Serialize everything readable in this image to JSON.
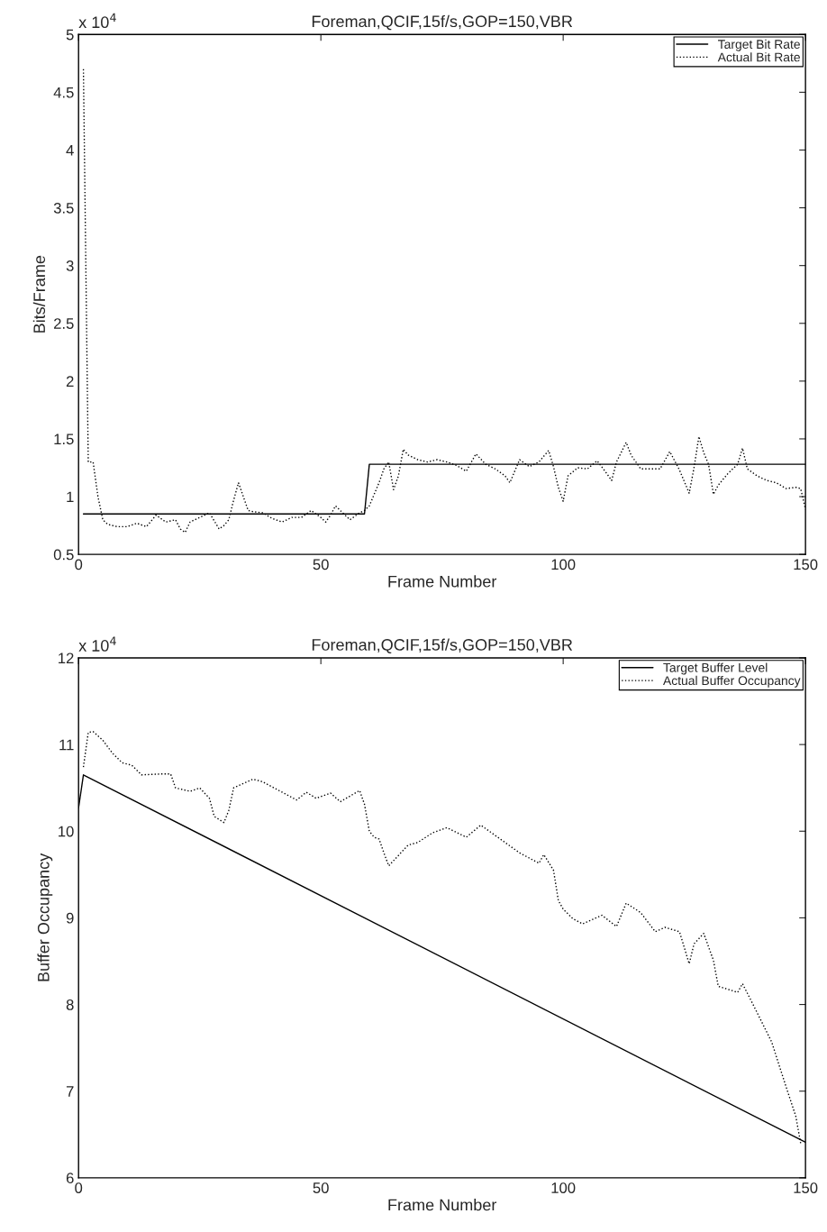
{
  "chart_data": [
    {
      "type": "line",
      "title": "Foreman,QCIF,15f/s,GOP=150,VBR",
      "xlabel": "Frame Number",
      "ylabel": "Bits/Frame",
      "annotations": [
        "x 10$^{4}$"
      ],
      "xlim": [
        0,
        150
      ],
      "xticks": [
        0,
        50,
        100,
        150
      ],
      "ylim": [
        0.5,
        5
      ],
      "yticks": [
        0.5,
        1,
        1.5,
        2,
        2.5,
        3,
        3.5,
        4,
        4.5,
        5
      ],
      "grid": false,
      "legend": "top right",
      "series": [
        {
          "name": "Target Bit Rate",
          "color": "#000000",
          "line_style": "solid",
          "x": [
            1,
            59,
            60,
            150
          ],
          "values": [
            0.85,
            0.85,
            1.28,
            1.28
          ]
        },
        {
          "name": "Actual Bit Rate",
          "color": "#000000",
          "line_style": "dotted",
          "x": [
            1,
            2,
            3,
            4,
            5,
            6,
            8,
            10,
            12,
            14,
            16,
            18,
            20,
            21,
            22,
            23,
            25,
            27,
            29,
            30,
            31,
            32,
            33,
            34,
            35,
            36,
            38,
            40,
            42,
            44,
            46,
            48,
            50,
            51,
            52,
            53,
            54,
            56,
            58,
            59,
            60,
            61,
            62,
            63,
            64,
            65,
            66,
            67,
            68,
            70,
            72,
            74,
            76,
            78,
            80,
            82,
            84,
            86,
            88,
            89,
            91,
            93,
            95,
            97,
            98,
            99,
            100,
            101,
            103,
            105,
            107,
            109,
            110,
            111,
            113,
            114,
            116,
            118,
            120,
            122,
            124,
            126,
            127,
            128,
            129,
            130,
            131,
            132,
            134,
            136,
            137,
            138,
            140,
            142,
            144,
            146,
            148,
            149,
            150
          ],
          "values": [
            4.7,
            1.3,
            1.3,
            1.0,
            0.8,
            0.76,
            0.74,
            0.74,
            0.77,
            0.74,
            0.84,
            0.78,
            0.8,
            0.72,
            0.69,
            0.78,
            0.82,
            0.86,
            0.72,
            0.75,
            0.8,
            0.97,
            1.12,
            1.0,
            0.88,
            0.87,
            0.86,
            0.81,
            0.78,
            0.82,
            0.82,
            0.88,
            0.82,
            0.78,
            0.84,
            0.92,
            0.88,
            0.8,
            0.86,
            0.88,
            0.92,
            1.02,
            1.12,
            1.24,
            1.3,
            1.06,
            1.18,
            1.41,
            1.36,
            1.32,
            1.3,
            1.32,
            1.3,
            1.27,
            1.22,
            1.37,
            1.28,
            1.24,
            1.18,
            1.12,
            1.32,
            1.26,
            1.3,
            1.4,
            1.26,
            1.08,
            0.96,
            1.18,
            1.25,
            1.24,
            1.31,
            1.2,
            1.14,
            1.3,
            1.47,
            1.36,
            1.24,
            1.24,
            1.24,
            1.39,
            1.23,
            1.03,
            1.25,
            1.52,
            1.38,
            1.28,
            1.02,
            1.1,
            1.2,
            1.28,
            1.42,
            1.24,
            1.18,
            1.14,
            1.12,
            1.07,
            1.08,
            1.07,
            0.89
          ]
        }
      ]
    },
    {
      "type": "line",
      "title": "Foreman,QCIF,15f/s,GOP=150,VBR",
      "xlabel": "Frame Number",
      "ylabel": "Buffer Occupancy",
      "annotations": [
        "x 10$^{4}$"
      ],
      "xlim": [
        0,
        150
      ],
      "xticks": [
        0,
        50,
        100,
        150
      ],
      "ylim": [
        6,
        12
      ],
      "yticks": [
        6,
        7,
        8,
        9,
        10,
        11,
        12
      ],
      "grid": false,
      "legend": "top right",
      "series": [
        {
          "name": "Target Buffer Level",
          "color": "#000000",
          "line_style": "solid",
          "x": [
            0,
            1,
            150
          ],
          "values": [
            10.27,
            10.65,
            6.41
          ]
        },
        {
          "name": "Actual Buffer Occupancy",
          "color": "#000000",
          "line_style": "dotted",
          "x": [
            1,
            2,
            3,
            5,
            7,
            9,
            11,
            13,
            17,
            19,
            20,
            23,
            25,
            27,
            28,
            30,
            31,
            32,
            34,
            36,
            38,
            41,
            45,
            47,
            49,
            52,
            54,
            58,
            59,
            60,
            61,
            62,
            63,
            64,
            66,
            68,
            70,
            73,
            76,
            80,
            83,
            87,
            91,
            95,
            96,
            98,
            99,
            100,
            102,
            104,
            108,
            111,
            113,
            116,
            119,
            121,
            124,
            126,
            127,
            129,
            131,
            132,
            136,
            137,
            139,
            143,
            146,
            148,
            149
          ],
          "values": [
            10.74,
            11.14,
            11.15,
            11.05,
            10.9,
            10.79,
            10.76,
            10.65,
            10.66,
            10.66,
            10.5,
            10.46,
            10.5,
            10.38,
            10.17,
            10.1,
            10.24,
            10.5,
            10.55,
            10.6,
            10.57,
            10.48,
            10.36,
            10.45,
            10.38,
            10.44,
            10.34,
            10.47,
            10.31,
            10.0,
            9.93,
            9.91,
            9.75,
            9.6,
            9.72,
            9.84,
            9.87,
            9.98,
            10.04,
            9.93,
            10.07,
            9.91,
            9.75,
            9.63,
            9.73,
            9.55,
            9.2,
            9.1,
            8.99,
            8.93,
            9.03,
            8.9,
            9.17,
            9.06,
            8.84,
            8.89,
            8.84,
            8.47,
            8.7,
            8.82,
            8.51,
            8.21,
            8.14,
            8.24,
            8.02,
            7.57,
            7.05,
            6.71,
            6.4
          ]
        }
      ]
    }
  ]
}
